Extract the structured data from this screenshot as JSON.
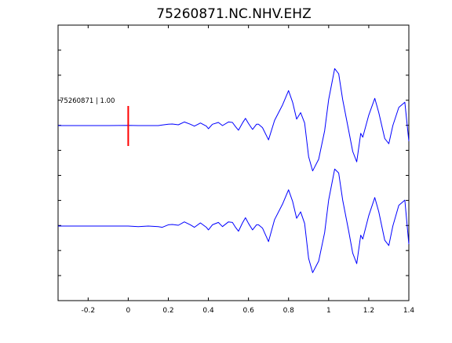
{
  "chart_data": {
    "type": "line",
    "title": "75260871.NC.NHV.EHZ",
    "xlabel": "",
    "ylabel": "",
    "xlim": [
      -0.35,
      1.4
    ],
    "xticks": [
      -0.2,
      0,
      0.2,
      0.4,
      0.6,
      0.8,
      1,
      1.2,
      1.4
    ],
    "xtick_labels": [
      "-0.2",
      "0",
      "0.2",
      "0.4",
      "0.6",
      "0.8",
      "1",
      "1.2",
      "1.4"
    ],
    "y_tick_labels_shown": false,
    "grid": false,
    "annotation": {
      "text": "75260871 | 1.00"
    },
    "pick_marker": {
      "x": 0,
      "color": "#ff0000"
    },
    "trace_color": "#0000ff",
    "series": [
      {
        "trace": "upper",
        "points": [
          [
            -0.35,
            0
          ],
          [
            -0.1,
            0
          ],
          [
            0.0,
            0.01
          ],
          [
            0.05,
            0.0
          ],
          [
            0.1,
            0.0
          ],
          [
            0.15,
            0.0
          ],
          [
            0.17,
            0.02
          ],
          [
            0.2,
            0.05
          ],
          [
            0.22,
            0.06
          ],
          [
            0.25,
            0.03
          ],
          [
            0.28,
            0.14
          ],
          [
            0.31,
            0.05
          ],
          [
            0.33,
            -0.02
          ],
          [
            0.36,
            0.1
          ],
          [
            0.39,
            -0.02
          ],
          [
            0.4,
            -0.12
          ],
          [
            0.42,
            0.05
          ],
          [
            0.45,
            0.12
          ],
          [
            0.47,
            0.0
          ],
          [
            0.5,
            0.14
          ],
          [
            0.52,
            0.12
          ],
          [
            0.535,
            -0.04
          ],
          [
            0.55,
            -0.18
          ],
          [
            0.57,
            0.1
          ],
          [
            0.585,
            0.28
          ],
          [
            0.6,
            0.08
          ],
          [
            0.62,
            -0.15
          ],
          [
            0.64,
            0.05
          ],
          [
            0.65,
            0.05
          ],
          [
            0.67,
            -0.08
          ],
          [
            0.7,
            -0.55
          ],
          [
            0.73,
            0.2
          ],
          [
            0.77,
            0.8
          ],
          [
            0.8,
            1.35
          ],
          [
            0.82,
            0.9
          ],
          [
            0.84,
            0.25
          ],
          [
            0.86,
            0.5
          ],
          [
            0.88,
            0.1
          ],
          [
            0.9,
            -1.2
          ],
          [
            0.92,
            -1.75
          ],
          [
            0.95,
            -1.3
          ],
          [
            0.98,
            -0.2
          ],
          [
            1.0,
            1.0
          ],
          [
            1.03,
            2.2
          ],
          [
            1.05,
            2.0
          ],
          [
            1.07,
            1.0
          ],
          [
            1.1,
            -0.2
          ],
          [
            1.12,
            -1.0
          ],
          [
            1.14,
            -1.4
          ],
          [
            1.16,
            -0.3
          ],
          [
            1.17,
            -0.45
          ],
          [
            1.2,
            0.4
          ],
          [
            1.23,
            1.05
          ],
          [
            1.25,
            0.5
          ],
          [
            1.28,
            -0.5
          ],
          [
            1.3,
            -0.7
          ],
          [
            1.32,
            0.0
          ],
          [
            1.35,
            0.7
          ],
          [
            1.38,
            0.9
          ],
          [
            1.4,
            -0.6
          ]
        ]
      },
      {
        "trace": "lower",
        "points": [
          [
            -0.35,
            0
          ],
          [
            -0.1,
            0
          ],
          [
            0.0,
            0.0
          ],
          [
            0.05,
            -0.02
          ],
          [
            0.1,
            0.0
          ],
          [
            0.15,
            -0.02
          ],
          [
            0.17,
            -0.05
          ],
          [
            0.2,
            0.05
          ],
          [
            0.22,
            0.06
          ],
          [
            0.25,
            0.03
          ],
          [
            0.28,
            0.16
          ],
          [
            0.31,
            0.05
          ],
          [
            0.33,
            -0.05
          ],
          [
            0.36,
            0.12
          ],
          [
            0.39,
            -0.05
          ],
          [
            0.4,
            -0.15
          ],
          [
            0.42,
            0.05
          ],
          [
            0.45,
            0.14
          ],
          [
            0.47,
            -0.02
          ],
          [
            0.5,
            0.16
          ],
          [
            0.52,
            0.14
          ],
          [
            0.535,
            -0.05
          ],
          [
            0.55,
            -0.2
          ],
          [
            0.57,
            0.12
          ],
          [
            0.585,
            0.32
          ],
          [
            0.6,
            0.1
          ],
          [
            0.62,
            -0.15
          ],
          [
            0.64,
            0.05
          ],
          [
            0.65,
            0.05
          ],
          [
            0.67,
            -0.08
          ],
          [
            0.7,
            -0.6
          ],
          [
            0.73,
            0.25
          ],
          [
            0.77,
            0.85
          ],
          [
            0.8,
            1.4
          ],
          [
            0.82,
            0.95
          ],
          [
            0.84,
            0.3
          ],
          [
            0.86,
            0.55
          ],
          [
            0.88,
            0.1
          ],
          [
            0.9,
            -1.25
          ],
          [
            0.92,
            -1.8
          ],
          [
            0.95,
            -1.35
          ],
          [
            0.98,
            -0.25
          ],
          [
            1.0,
            1.0
          ],
          [
            1.03,
            2.2
          ],
          [
            1.05,
            2.05
          ],
          [
            1.07,
            1.0
          ],
          [
            1.1,
            -0.2
          ],
          [
            1.12,
            -1.05
          ],
          [
            1.14,
            -1.45
          ],
          [
            1.16,
            -0.35
          ],
          [
            1.17,
            -0.5
          ],
          [
            1.2,
            0.4
          ],
          [
            1.23,
            1.1
          ],
          [
            1.25,
            0.55
          ],
          [
            1.28,
            -0.55
          ],
          [
            1.3,
            -0.75
          ],
          [
            1.32,
            0.0
          ],
          [
            1.35,
            0.8
          ],
          [
            1.38,
            1.0
          ],
          [
            1.4,
            -0.7
          ]
        ]
      }
    ]
  }
}
